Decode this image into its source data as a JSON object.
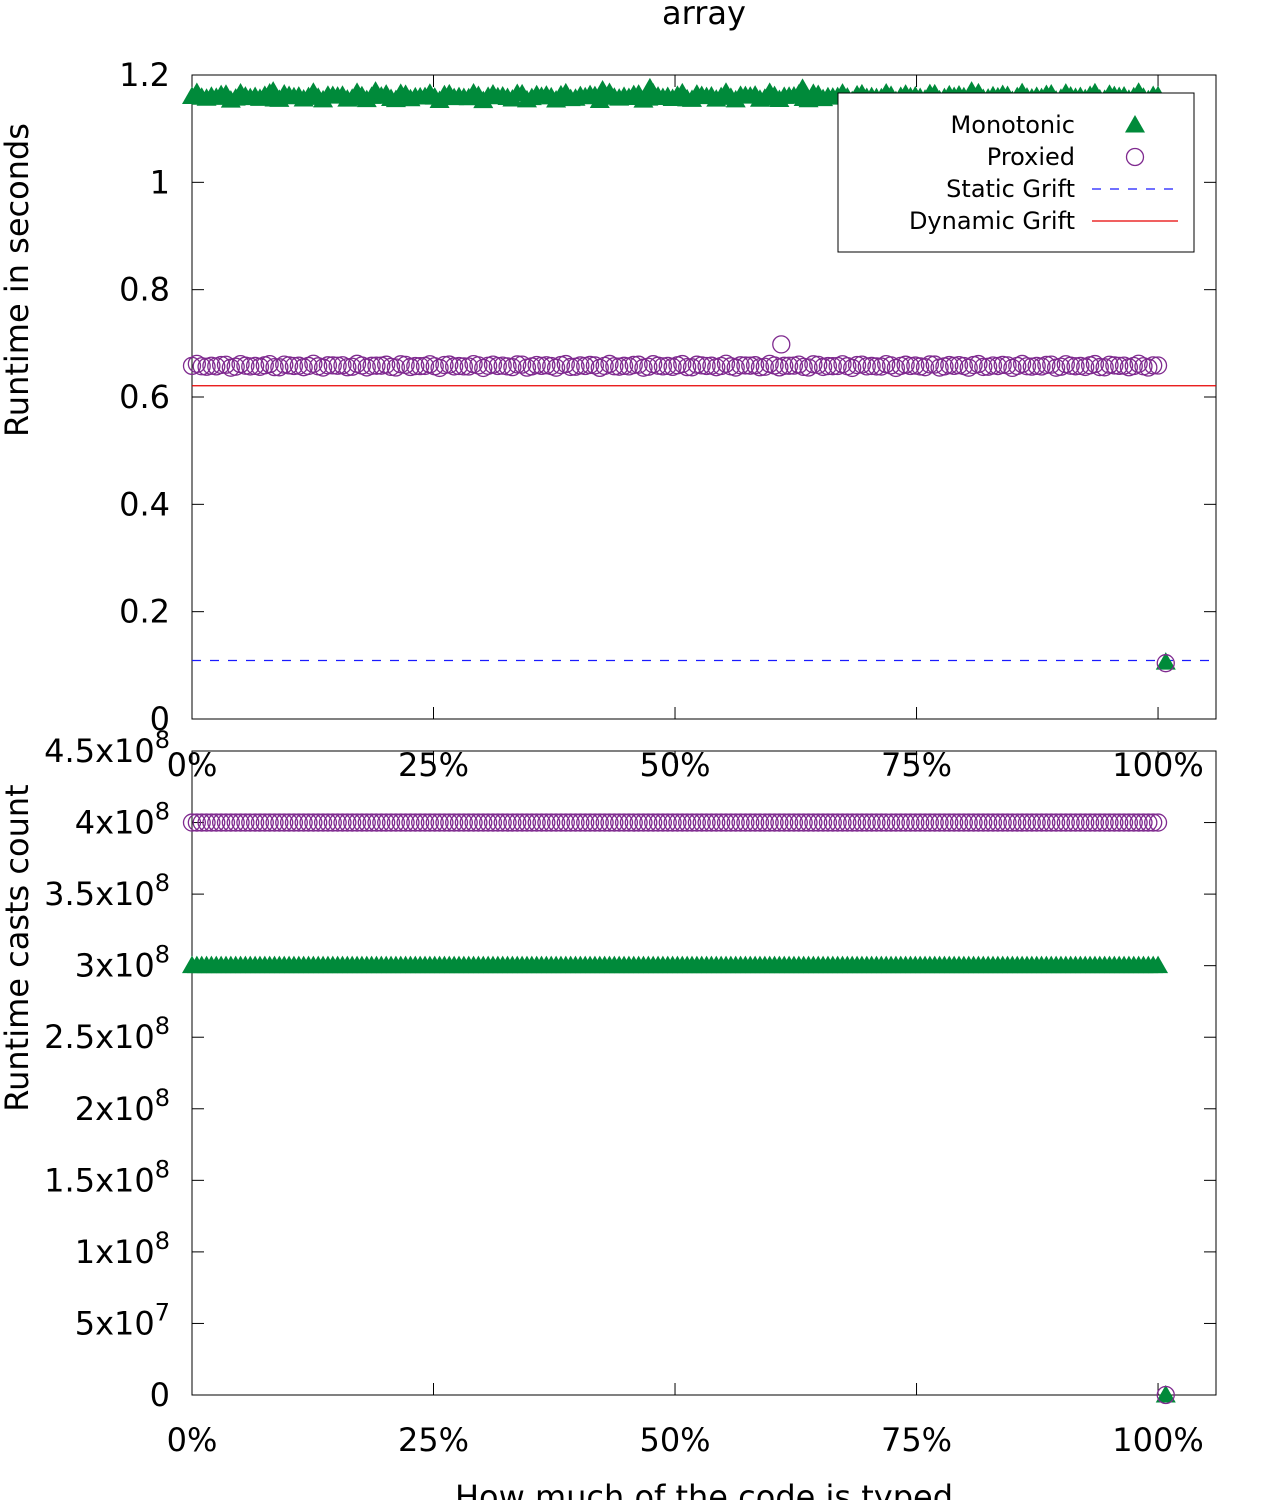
{
  "chart_data": [
    {
      "type": "scatter",
      "title": "array",
      "xlabel": "",
      "ylabel": "Runtime in seconds",
      "xlim": [
        0,
        1.06
      ],
      "ylim": [
        0,
        1.2
      ],
      "xticks": [
        0,
        0.25,
        0.5,
        0.75,
        1.0
      ],
      "xticklabels": [
        "0%",
        "25%",
        "50%",
        "75%",
        "100%"
      ],
      "yticks": [
        0,
        0.2,
        0.4,
        0.6,
        0.8,
        1.0,
        1.2
      ],
      "yticklabels": [
        "0",
        "0.2",
        "0.4",
        "0.6",
        "0.8",
        "1",
        "1.2"
      ],
      "legend_position": "top-right",
      "series": [
        {
          "name": "Monotonic",
          "marker": "filled-triangle",
          "color": "#008a3a",
          "x_range": [
            0.0,
            1.0
          ],
          "count": 200,
          "base_value": 1.16,
          "value_amplitude": 0.008,
          "outliers": [
            {
              "x": 0.084,
              "y": 1.17
            },
            {
              "x": 0.19,
              "y": 1.17
            },
            {
              "x": 0.425,
              "y": 1.172
            },
            {
              "x": 0.474,
              "y": 1.176
            },
            {
              "x": 0.632,
              "y": 1.175
            },
            {
              "x": 0.807,
              "y": 1.17
            }
          ],
          "extra_points": [
            {
              "x": 1.008,
              "y": 0.106
            }
          ]
        },
        {
          "name": "Proxied",
          "marker": "open-circle",
          "color": "#7f2a8f",
          "x_range": [
            0.0,
            1.0
          ],
          "count": 200,
          "base_value": 0.658,
          "value_amplitude": 0.004,
          "outliers": [
            {
              "x": 0.61,
              "y": 0.698
            }
          ],
          "extra_points": [
            {
              "x": 1.008,
              "y": 0.104
            }
          ]
        }
      ],
      "reference_lines": [
        {
          "name": "Static Grift",
          "value": 0.109,
          "color": "#1a1aff",
          "style": "dashed"
        },
        {
          "name": "Dynamic Grift",
          "value": 0.621,
          "color": "#e60000",
          "style": "solid"
        }
      ]
    },
    {
      "type": "scatter",
      "title": "",
      "xlabel": "How much of the code is typed",
      "ylabel": "Runtime casts count",
      "xlim": [
        0,
        1.06
      ],
      "ylim": [
        0,
        450000000
      ],
      "xticks": [
        0,
        0.25,
        0.5,
        0.75,
        1.0
      ],
      "xticklabels": [
        "0%",
        "25%",
        "50%",
        "75%",
        "100%"
      ],
      "yticks": [
        0,
        50000000,
        100000000,
        150000000,
        200000000,
        250000000,
        300000000,
        350000000,
        400000000,
        450000000
      ],
      "yticklabels": [
        {
          "mantissa": "0",
          "exponent": ""
        },
        {
          "mantissa": "5x10",
          "exponent": "7"
        },
        {
          "mantissa": "1x10",
          "exponent": "8"
        },
        {
          "mantissa": "1.5x10",
          "exponent": "8"
        },
        {
          "mantissa": "2x10",
          "exponent": "8"
        },
        {
          "mantissa": "2.5x10",
          "exponent": "8"
        },
        {
          "mantissa": "3x10",
          "exponent": "8"
        },
        {
          "mantissa": "3.5x10",
          "exponent": "8"
        },
        {
          "mantissa": "4x10",
          "exponent": "8"
        },
        {
          "mantissa": "4.5x10",
          "exponent": "8"
        }
      ],
      "series": [
        {
          "name": "Monotonic",
          "marker": "filled-triangle",
          "color": "#008a3a",
          "x_range": [
            0.0,
            1.0
          ],
          "count": 200,
          "base_value": 300000000,
          "value_amplitude": 0,
          "outliers": [],
          "extra_points": [
            {
              "x": 1.008,
              "y": 0
            }
          ]
        },
        {
          "name": "Proxied",
          "marker": "open-circle",
          "color": "#7f2a8f",
          "x_range": [
            0.0,
            1.0
          ],
          "count": 200,
          "base_value": 400000000,
          "value_amplitude": 0,
          "outliers": [],
          "extra_points": [
            {
              "x": 1.008,
              "y": 0
            }
          ]
        }
      ]
    }
  ]
}
